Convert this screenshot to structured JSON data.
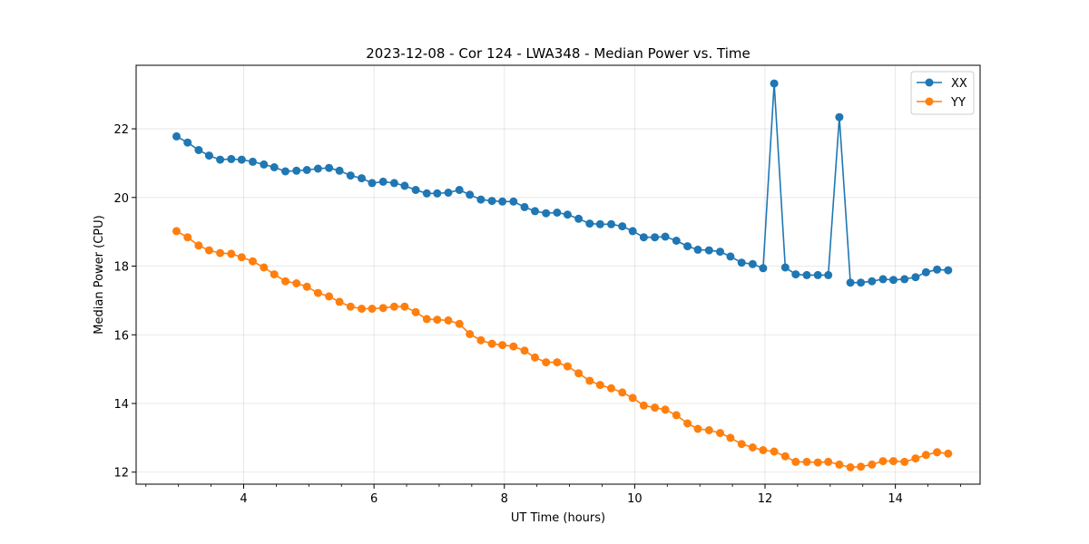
{
  "chart_data": {
    "type": "line",
    "title": "2023-12-08 - Cor 124 - LWA348 - Median Power vs. Time",
    "xlabel": "UT Time (hours)",
    "ylabel": "Median Power (CPU)",
    "xlim": [
      2.35,
      15.3
    ],
    "ylim": [
      11.65,
      23.85
    ],
    "x_ticks": [
      4,
      6,
      8,
      10,
      12,
      14
    ],
    "y_ticks": [
      12,
      14,
      16,
      18,
      20,
      22
    ],
    "grid": true,
    "legend_position": "top-right",
    "x": [
      2.97,
      3.14,
      3.31,
      3.47,
      3.64,
      3.81,
      3.97,
      4.14,
      4.31,
      4.47,
      4.64,
      4.81,
      4.97,
      5.14,
      5.31,
      5.47,
      5.64,
      5.81,
      5.97,
      6.14,
      6.31,
      6.47,
      6.64,
      6.81,
      6.97,
      7.14,
      7.31,
      7.47,
      7.64,
      7.81,
      7.97,
      8.14,
      8.31,
      8.47,
      8.64,
      8.81,
      8.97,
      9.14,
      9.31,
      9.47,
      9.64,
      9.81,
      9.97,
      10.14,
      10.31,
      10.47,
      10.64,
      10.81,
      10.97,
      11.14,
      11.31,
      11.47,
      11.64,
      11.81,
      11.97,
      12.14,
      12.31,
      12.47,
      12.64,
      12.81,
      12.97,
      13.14,
      13.31,
      13.47,
      13.64,
      13.81,
      13.97,
      14.14,
      14.31,
      14.47,
      14.64,
      14.81
    ],
    "series": [
      {
        "name": "XX",
        "color": "#1f77b4",
        "values": [
          21.78,
          21.6,
          21.38,
          21.22,
          21.1,
          21.12,
          21.1,
          21.04,
          20.96,
          20.88,
          20.76,
          20.78,
          20.8,
          20.84,
          20.86,
          20.78,
          20.64,
          20.56,
          20.42,
          20.46,
          20.42,
          20.34,
          20.22,
          20.12,
          20.12,
          20.14,
          20.22,
          20.08,
          19.94,
          19.9,
          19.88,
          19.88,
          19.72,
          19.6,
          19.54,
          19.56,
          19.5,
          19.38,
          19.24,
          19.22,
          19.22,
          19.16,
          19.02,
          18.84,
          18.84,
          18.86,
          18.74,
          18.58,
          18.48,
          18.46,
          18.42,
          18.28,
          18.1,
          18.06,
          17.94,
          23.32,
          17.96,
          17.76,
          17.74,
          17.74,
          17.74,
          22.34,
          17.52,
          17.52,
          17.56,
          17.62,
          17.6,
          17.62,
          17.68,
          17.82,
          17.9,
          17.88
        ]
      },
      {
        "name": "YY",
        "color": "#ff7f0e",
        "values": [
          19.02,
          18.84,
          18.6,
          18.46,
          18.38,
          18.36,
          18.26,
          18.14,
          17.96,
          17.76,
          17.56,
          17.5,
          17.4,
          17.22,
          17.12,
          16.96,
          16.82,
          16.76,
          16.76,
          16.78,
          16.82,
          16.82,
          16.66,
          16.46,
          16.44,
          16.42,
          16.32,
          16.02,
          15.84,
          15.74,
          15.7,
          15.66,
          15.54,
          15.34,
          15.2,
          15.2,
          15.08,
          14.88,
          14.66,
          14.54,
          14.44,
          14.32,
          14.16,
          13.94,
          13.88,
          13.82,
          13.66,
          13.42,
          13.26,
          13.22,
          13.14,
          13.0,
          12.82,
          12.72,
          12.64,
          12.6,
          12.46,
          12.3,
          12.3,
          12.28,
          12.3,
          12.22,
          12.14,
          12.16,
          12.22,
          12.32,
          12.32,
          12.3,
          12.4,
          12.5,
          12.58,
          12.54
        ]
      }
    ]
  }
}
